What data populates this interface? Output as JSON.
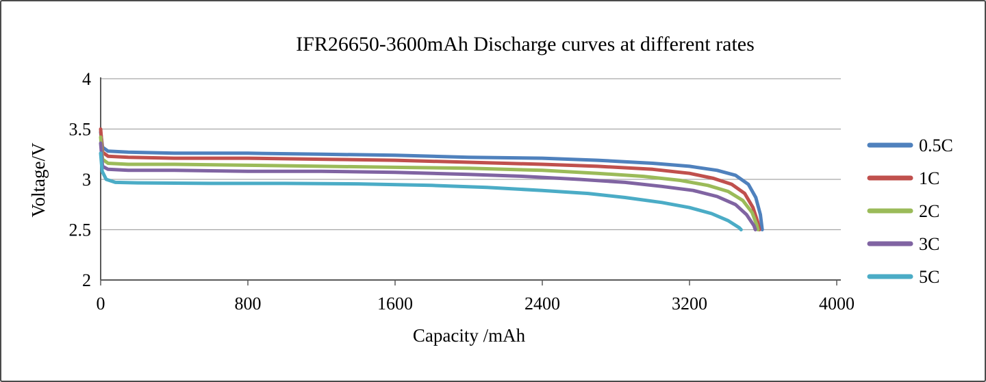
{
  "chart_data": {
    "type": "line",
    "title": "IFR26650-3600mAh Discharge curves at different rates",
    "xlabel": "Capacity /mAh",
    "ylabel": "Voltage/V",
    "xlim": [
      0,
      4000
    ],
    "ylim": [
      2,
      4
    ],
    "x_ticks": [
      0,
      800,
      1600,
      2400,
      3200,
      4000
    ],
    "y_ticks": [
      2,
      2.5,
      3,
      3.5,
      4
    ],
    "grid": "horizontal",
    "legend_position": "right",
    "axis_color": "#595959",
    "gridline_color": "#a6a6a6",
    "series": [
      {
        "name": "0.5C",
        "color": "#4F81BD",
        "points": [
          [
            0,
            3.47
          ],
          [
            10,
            3.32
          ],
          [
            40,
            3.28
          ],
          [
            150,
            3.27
          ],
          [
            400,
            3.26
          ],
          [
            800,
            3.26
          ],
          [
            1200,
            3.25
          ],
          [
            1600,
            3.24
          ],
          [
            2000,
            3.22
          ],
          [
            2400,
            3.21
          ],
          [
            2700,
            3.19
          ],
          [
            3000,
            3.16
          ],
          [
            3200,
            3.13
          ],
          [
            3350,
            3.09
          ],
          [
            3450,
            3.04
          ],
          [
            3520,
            2.95
          ],
          [
            3560,
            2.82
          ],
          [
            3585,
            2.65
          ],
          [
            3595,
            2.5
          ]
        ]
      },
      {
        "name": "1C",
        "color": "#C0504D",
        "points": [
          [
            0,
            3.5
          ],
          [
            10,
            3.27
          ],
          [
            40,
            3.23
          ],
          [
            150,
            3.22
          ],
          [
            400,
            3.21
          ],
          [
            800,
            3.21
          ],
          [
            1200,
            3.2
          ],
          [
            1600,
            3.19
          ],
          [
            2000,
            3.17
          ],
          [
            2400,
            3.15
          ],
          [
            2700,
            3.13
          ],
          [
            3000,
            3.1
          ],
          [
            3200,
            3.06
          ],
          [
            3330,
            3.01
          ],
          [
            3430,
            2.95
          ],
          [
            3500,
            2.86
          ],
          [
            3545,
            2.72
          ],
          [
            3570,
            2.58
          ],
          [
            3580,
            2.5
          ]
        ]
      },
      {
        "name": "2C",
        "color": "#9BBB59",
        "points": [
          [
            0,
            3.42
          ],
          [
            10,
            3.2
          ],
          [
            40,
            3.16
          ],
          [
            150,
            3.15
          ],
          [
            400,
            3.15
          ],
          [
            800,
            3.14
          ],
          [
            1200,
            3.13
          ],
          [
            1600,
            3.12
          ],
          [
            2000,
            3.11
          ],
          [
            2400,
            3.09
          ],
          [
            2700,
            3.06
          ],
          [
            2950,
            3.03
          ],
          [
            3150,
            2.99
          ],
          [
            3300,
            2.94
          ],
          [
            3410,
            2.88
          ],
          [
            3490,
            2.79
          ],
          [
            3540,
            2.67
          ],
          [
            3565,
            2.55
          ],
          [
            3572,
            2.5
          ]
        ]
      },
      {
        "name": "3C",
        "color": "#8064A2",
        "points": [
          [
            0,
            3.36
          ],
          [
            10,
            3.13
          ],
          [
            40,
            3.1
          ],
          [
            150,
            3.09
          ],
          [
            400,
            3.09
          ],
          [
            800,
            3.08
          ],
          [
            1200,
            3.08
          ],
          [
            1600,
            3.07
          ],
          [
            2000,
            3.05
          ],
          [
            2300,
            3.03
          ],
          [
            2600,
            3.0
          ],
          [
            2850,
            2.97
          ],
          [
            3050,
            2.93
          ],
          [
            3220,
            2.89
          ],
          [
            3350,
            2.83
          ],
          [
            3450,
            2.75
          ],
          [
            3510,
            2.65
          ],
          [
            3550,
            2.54
          ],
          [
            3558,
            2.5
          ]
        ]
      },
      {
        "name": "5C",
        "color": "#4BACC6",
        "points": [
          [
            0,
            3.26
          ],
          [
            8,
            3.08
          ],
          [
            30,
            3.0
          ],
          [
            80,
            2.97
          ],
          [
            200,
            2.965
          ],
          [
            600,
            2.96
          ],
          [
            1000,
            2.96
          ],
          [
            1400,
            2.955
          ],
          [
            1800,
            2.94
          ],
          [
            2100,
            2.92
          ],
          [
            2400,
            2.89
          ],
          [
            2650,
            2.86
          ],
          [
            2850,
            2.82
          ],
          [
            3050,
            2.77
          ],
          [
            3200,
            2.72
          ],
          [
            3320,
            2.66
          ],
          [
            3410,
            2.59
          ],
          [
            3470,
            2.52
          ],
          [
            3480,
            2.5
          ]
        ]
      }
    ]
  }
}
